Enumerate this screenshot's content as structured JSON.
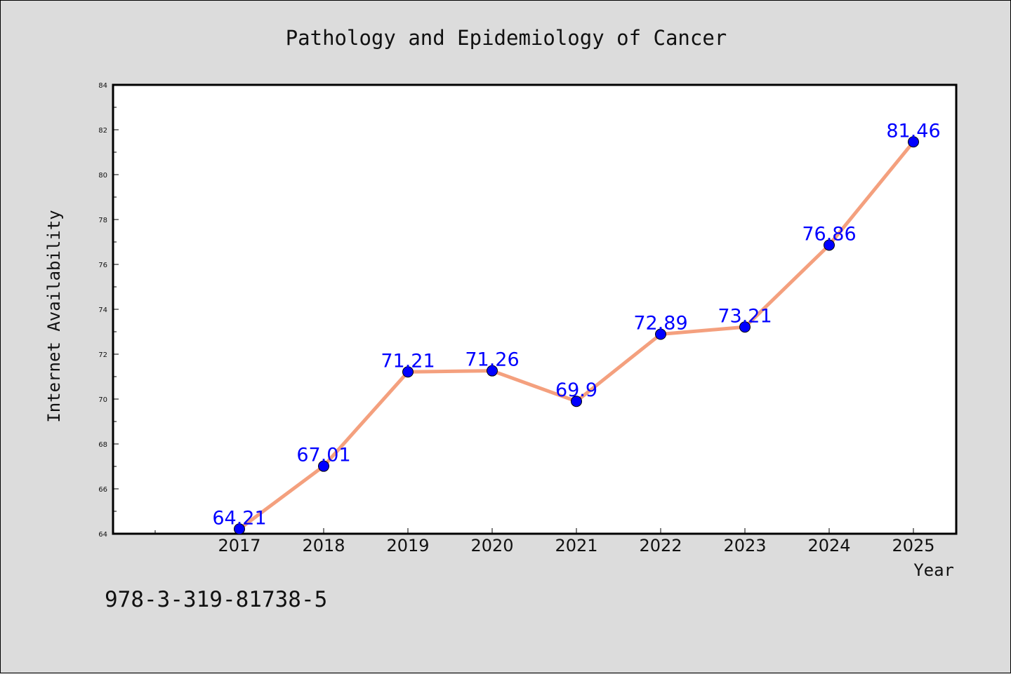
{
  "chart_data": {
    "type": "line",
    "title": "Pathology and Epidemiology of Cancer",
    "xlabel": "Year",
    "ylabel": "Internet Availability",
    "categories": [
      "2017",
      "2018",
      "2019",
      "2020",
      "2021",
      "2022",
      "2023",
      "2024",
      "2025"
    ],
    "series": [
      {
        "values": [
          64.21,
          67.01,
          71.21,
          71.26,
          69.9,
          72.89,
          73.21,
          76.86,
          81.46
        ],
        "labels": [
          "64.21",
          "67.01",
          "71.21",
          "71.26",
          "69.9",
          "72.89",
          "73.21",
          "76.86",
          "81.46"
        ]
      }
    ],
    "ylim": [
      64,
      84
    ],
    "yticks": [
      "64",
      "66",
      "68",
      "70",
      "72",
      "74",
      "76",
      "78",
      "80",
      "82",
      "84"
    ],
    "grid": false,
    "legend": "none",
    "line_color": "#f4a07e",
    "marker_color": "#0000ff",
    "label_color": "#0000ff"
  },
  "footer": {
    "isbn": "978-3-319-81738-5"
  }
}
